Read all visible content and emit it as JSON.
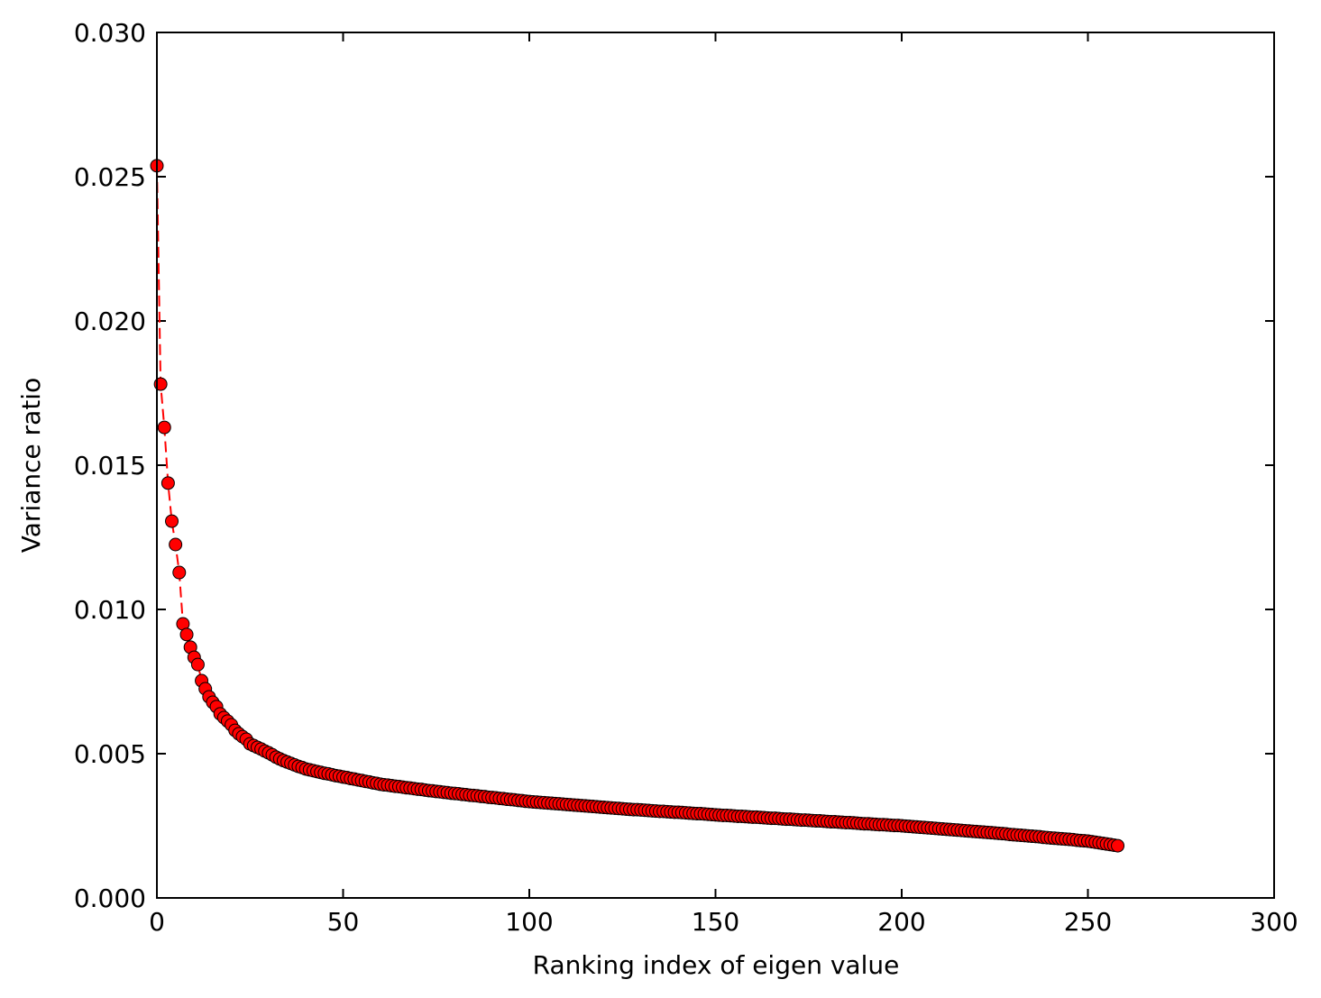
{
  "chart_data": {
    "type": "line",
    "x_label": "Ranking index of eigen value",
    "y_label": "Variance ratio",
    "xlim": [
      0,
      300
    ],
    "xticks": [
      0,
      50,
      100,
      150,
      200,
      250,
      300
    ],
    "ylim": [
      0,
      0.03
    ],
    "yticks": [
      {
        "value": 0,
        "label": "0.000"
      },
      0.005,
      {
        "value": 0.01,
        "label": "0.010"
      },
      0.015,
      {
        "value": 0.02,
        "label": "0.020"
      },
      0.025,
      {
        "value": 0.03,
        "label": "0.030"
      }
    ],
    "x": [
      0,
      1,
      2,
      3,
      4,
      5,
      6,
      7,
      8,
      9,
      10,
      11,
      12,
      13,
      14,
      15,
      16,
      17,
      18,
      19,
      20,
      21,
      22,
      23,
      24,
      25,
      26,
      27,
      28,
      29,
      30,
      31,
      32,
      33,
      34,
      35,
      36,
      37,
      38,
      39,
      40,
      41,
      42,
      43,
      44,
      45,
      46,
      47,
      48,
      49,
      50,
      51,
      52,
      53,
      54,
      55,
      56,
      57,
      58,
      59,
      60,
      61,
      62,
      63,
      64,
      65,
      66,
      67,
      68,
      69,
      70,
      71,
      72,
      73,
      74,
      75,
      76,
      77,
      78,
      79,
      80,
      81,
      82,
      83,
      84,
      85,
      86,
      87,
      88,
      89,
      90,
      91,
      92,
      93,
      94,
      95,
      96,
      97,
      98,
      99,
      100,
      101,
      102,
      103,
      104,
      105,
      106,
      107,
      108,
      109,
      110,
      111,
      112,
      113,
      114,
      115,
      116,
      117,
      118,
      119,
      120,
      121,
      122,
      123,
      124,
      125,
      126,
      127,
      128,
      129,
      130,
      131,
      132,
      133,
      134,
      135,
      136,
      137,
      138,
      139,
      140,
      141,
      142,
      143,
      144,
      145,
      146,
      147,
      148,
      149,
      150,
      151,
      152,
      153,
      154,
      155,
      156,
      157,
      158,
      159,
      160,
      161,
      162,
      163,
      164,
      165,
      166,
      167,
      168,
      169,
      170,
      171,
      172,
      173,
      174,
      175,
      176,
      177,
      178,
      179,
      180,
      181,
      182,
      183,
      184,
      185,
      186,
      187,
      188,
      189,
      190,
      191,
      192,
      193,
      194,
      195,
      196,
      197,
      198,
      199,
      200,
      201,
      202,
      203,
      204,
      205,
      206,
      207,
      208,
      209,
      210,
      211,
      212,
      213,
      214,
      215,
      216,
      217,
      218,
      219,
      220,
      221,
      222,
      223,
      224,
      225,
      226,
      227,
      228,
      229,
      230,
      231,
      232,
      233,
      234,
      235,
      236,
      237,
      238,
      239,
      240,
      241,
      242,
      243,
      244,
      245,
      246,
      247,
      248,
      249,
      250,
      251,
      252,
      253,
      254,
      255,
      256,
      257,
      258
    ],
    "series": [
      {
        "color": "#ff0000",
        "edge_color": "#000000",
        "line_style": "dashed",
        "values": [
          0.02538,
          0.01781,
          0.01631,
          0.01438,
          0.01306,
          0.01225,
          0.01128,
          0.0095,
          0.00913,
          0.00869,
          0.00834,
          0.00809,
          0.00753,
          0.00725,
          0.00697,
          0.00678,
          0.00663,
          0.00638,
          0.00625,
          0.00613,
          0.006,
          0.00581,
          0.00569,
          0.00559,
          0.0055,
          0.00534,
          0.00528,
          0.00522,
          0.00516,
          0.00509,
          0.00503,
          0.00496,
          0.00488,
          0.00482,
          0.00476,
          0.00471,
          0.00466,
          0.00461,
          0.00456,
          0.00452,
          0.00447,
          0.00444,
          0.00441,
          0.00438,
          0.00435,
          0.00432,
          0.0043,
          0.00427,
          0.00424,
          0.00422,
          0.00419,
          0.00417,
          0.00414,
          0.00412,
          0.00409,
          0.00407,
          0.00404,
          0.00402,
          0.00399,
          0.00397,
          0.00394,
          0.00392,
          0.00391,
          0.00389,
          0.00387,
          0.00386,
          0.00384,
          0.00382,
          0.00381,
          0.00379,
          0.00377,
          0.00376,
          0.00374,
          0.00372,
          0.00371,
          0.00369,
          0.00368,
          0.00366,
          0.00365,
          0.00363,
          0.00362,
          0.00361,
          0.00359,
          0.00358,
          0.00356,
          0.00355,
          0.00354,
          0.00352,
          0.00351,
          0.00349,
          0.00348,
          0.00347,
          0.00345,
          0.00344,
          0.00342,
          0.00341,
          0.0034,
          0.00338,
          0.00337,
          0.00335,
          0.00334,
          0.00333,
          0.00332,
          0.00331,
          0.0033,
          0.00329,
          0.00328,
          0.00327,
          0.00326,
          0.00325,
          0.00324,
          0.00323,
          0.00322,
          0.00321,
          0.0032,
          0.00319,
          0.00318,
          0.00317,
          0.00316,
          0.00315,
          0.00314,
          0.00313,
          0.00312,
          0.00311,
          0.0031,
          0.00309,
          0.00308,
          0.00307,
          0.00306,
          0.00306,
          0.00305,
          0.00304,
          0.00303,
          0.00302,
          0.00301,
          0.003,
          0.003,
          0.00299,
          0.00298,
          0.00297,
          0.00297,
          0.00296,
          0.00295,
          0.00294,
          0.00293,
          0.00292,
          0.00292,
          0.00291,
          0.0029,
          0.00289,
          0.00288,
          0.00287,
          0.00286,
          0.00286,
          0.00285,
          0.00284,
          0.00283,
          0.00283,
          0.00282,
          0.00281,
          0.0028,
          0.0028,
          0.00279,
          0.00278,
          0.00277,
          0.00276,
          0.00276,
          0.00275,
          0.00274,
          0.00273,
          0.00273,
          0.00272,
          0.00271,
          0.0027,
          0.0027,
          0.00269,
          0.00268,
          0.00267,
          0.00267,
          0.00266,
          0.00265,
          0.00264,
          0.00264,
          0.00263,
          0.00262,
          0.00261,
          0.00261,
          0.0026,
          0.00259,
          0.00258,
          0.00257,
          0.00257,
          0.00256,
          0.00255,
          0.00254,
          0.00254,
          0.00253,
          0.00252,
          0.00251,
          0.00251,
          0.0025,
          0.00249,
          0.00248,
          0.00247,
          0.00246,
          0.00245,
          0.00244,
          0.00243,
          0.00242,
          0.00241,
          0.0024,
          0.00239,
          0.00238,
          0.00237,
          0.00236,
          0.00235,
          0.00234,
          0.00233,
          0.00232,
          0.00231,
          0.0023,
          0.00229,
          0.00228,
          0.00227,
          0.00226,
          0.00225,
          0.00224,
          0.00223,
          0.00222,
          0.0022,
          0.00219,
          0.00218,
          0.00217,
          0.00216,
          0.00215,
          0.00214,
          0.00213,
          0.00212,
          0.0021,
          0.00209,
          0.00208,
          0.00207,
          0.00206,
          0.00205,
          0.00204,
          0.00203,
          0.00202,
          0.002,
          0.00199,
          0.00198,
          0.00197,
          0.00195,
          0.00193,
          0.00191,
          0.00189,
          0.00187,
          0.00185,
          0.00183,
          0.00181
        ]
      }
    ]
  }
}
